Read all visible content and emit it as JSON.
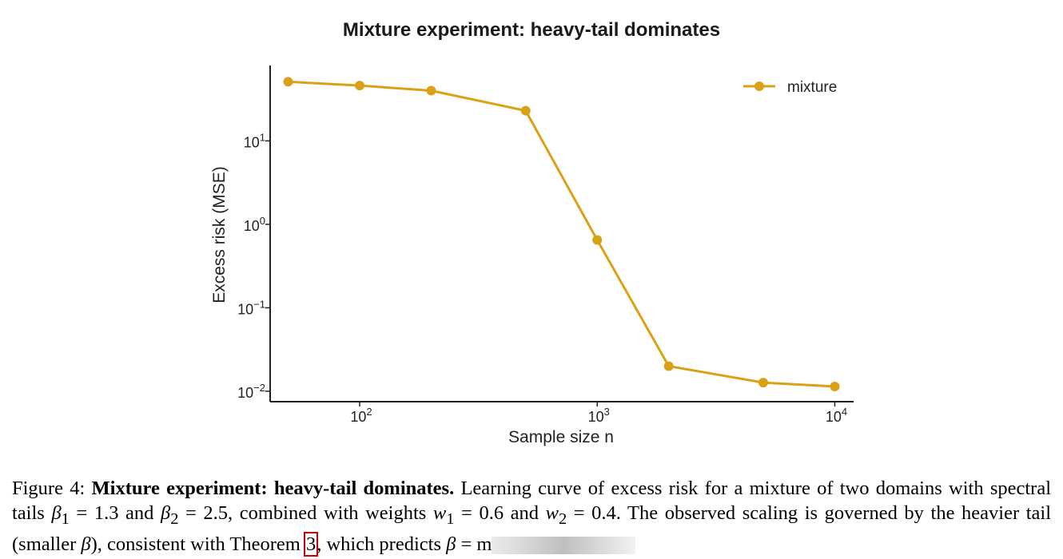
{
  "chart_data": {
    "type": "line",
    "title": "Mixture experiment: heavy-tail dominates",
    "xlabel": "Sample size n",
    "ylabel": "Excess risk (MSE)",
    "xscale": "log",
    "yscale": "log",
    "xlim": [
      42,
      12000
    ],
    "ylim": [
      0.0075,
      80
    ],
    "grid": false,
    "legend_position": "top-right",
    "x_ticks": [
      {
        "value": 100,
        "base": "10",
        "exp": "2"
      },
      {
        "value": 1000,
        "base": "10",
        "exp": "3"
      },
      {
        "value": 10000,
        "base": "10",
        "exp": "4"
      }
    ],
    "y_ticks": [
      {
        "value": 0.01,
        "base": "10",
        "exp": "−2"
      },
      {
        "value": 0.1,
        "base": "10",
        "exp": "−1"
      },
      {
        "value": 1,
        "base": "10",
        "exp": "0"
      },
      {
        "value": 10,
        "base": "10",
        "exp": "1"
      }
    ],
    "series": [
      {
        "name": "mixture",
        "color": "#dba116",
        "x": [
          50,
          100,
          200,
          500,
          1000,
          2000,
          5000,
          10000
        ],
        "y": [
          51,
          46,
          40,
          23,
          0.65,
          0.02,
          0.0127,
          0.0114
        ]
      }
    ]
  },
  "caption": {
    "figure_label": "Figure 4:",
    "bold_title": "Mixture experiment: heavy-tail dominates.",
    "text_1": "Learning curve of excess risk for a mixture of two domains with spectral tails",
    "beta1": "β",
    "beta1_sub": "1",
    "eq_1": " = 1.3 and ",
    "beta2": "β",
    "beta2_sub": "2",
    "eq_2": " = 2.5, combined with weights ",
    "w1": "w",
    "w1_sub": "1",
    "eq_3": " = 0.6 and ",
    "w2": "w",
    "w2_sub": "2",
    "eq_4": " = 0.4. The observed scaling is governed by the heavier tail (smaller ",
    "beta3": "β",
    "text_2": "), consistent with Theorem ",
    "theorem_ref": "3",
    "text_3": ", which predicts ",
    "beta4": "β",
    "text_4": " = m"
  }
}
